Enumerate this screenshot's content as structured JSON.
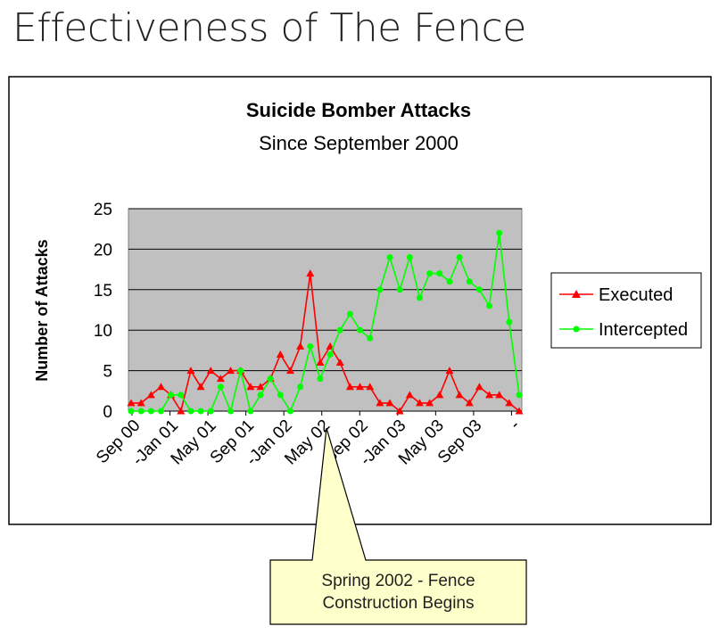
{
  "slide_title": "Effectiveness of The Fence",
  "chart_data": {
    "type": "line",
    "title": "Suicide Bomber Attacks",
    "subtitle": "Since September 2000",
    "ylabel": "Number of Attacks",
    "xlabel": "",
    "ylim": [
      0,
      25
    ],
    "yticks": [
      0,
      5,
      10,
      15,
      20,
      25
    ],
    "grid": true,
    "legend_position": "right",
    "plot_background": "#c0c0c0",
    "x_tick_labels": [
      "Sep 00",
      "-Jan 01",
      "May 01",
      "Sep 01",
      "-Jan 02",
      "May 02",
      "Sep 02",
      "-Jan 03",
      "May 03",
      "Sep 03",
      "-"
    ],
    "series": [
      {
        "name": "Executed",
        "color": "#ff0000",
        "marker": "triangle",
        "values": [
          1,
          1,
          2,
          3,
          2,
          0,
          5,
          3,
          5,
          4,
          5,
          5,
          3,
          3,
          4,
          7,
          5,
          8,
          17,
          6,
          8,
          6,
          3,
          3,
          3,
          1,
          1,
          0,
          2,
          1,
          1,
          2,
          5,
          2,
          1,
          3,
          2,
          2,
          1,
          0
        ]
      },
      {
        "name": "Intercepted",
        "color": "#00ff00",
        "marker": "circle",
        "values": [
          0,
          0,
          0,
          0,
          2,
          2,
          0,
          0,
          0,
          3,
          0,
          5,
          0,
          2,
          4,
          2,
          0,
          3,
          8,
          4,
          7,
          10,
          12,
          10,
          9,
          15,
          19,
          15,
          19,
          14,
          17,
          17,
          16,
          19,
          16,
          15,
          13,
          22,
          11,
          2
        ]
      }
    ]
  },
  "callout": {
    "line1": "Spring 2002 - Fence",
    "line2": "Construction Begins"
  }
}
